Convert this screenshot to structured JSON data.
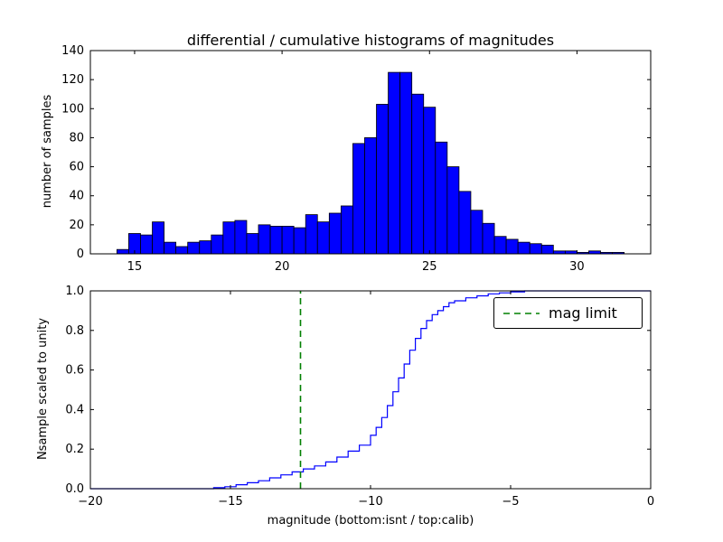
{
  "figure": {
    "background": "#ffffff",
    "axis_color": "#000000"
  },
  "chart_data": [
    {
      "type": "bar",
      "title": "differential / cumulative histograms of magnitudes",
      "ylabel": "number of samples",
      "xlabel": "",
      "bar_color": "#0000ff",
      "bar_edge_color": "#000000",
      "bin_start": 14.4,
      "bin_width": 0.4,
      "values": [
        3,
        14,
        13,
        22,
        8,
        5,
        8,
        9,
        13,
        22,
        23,
        14,
        20,
        19,
        19,
        18,
        27,
        22,
        28,
        33,
        76,
        80,
        103,
        125,
        125,
        110,
        101,
        77,
        60,
        43,
        30,
        21,
        12,
        10,
        8,
        7,
        6,
        2,
        2,
        1,
        2,
        1,
        1
      ],
      "xlim": [
        13.5,
        32.5
      ],
      "ylim": [
        0,
        140
      ],
      "xticks": [
        15,
        20,
        25,
        30
      ],
      "xticklabels": [
        "15",
        "20",
        "25",
        "30"
      ],
      "yticks": [
        0,
        20,
        40,
        60,
        80,
        100,
        120,
        140
      ],
      "yticklabels": [
        "0",
        "20",
        "40",
        "60",
        "80",
        "100",
        "120",
        "140"
      ],
      "grid": false
    },
    {
      "type": "line",
      "step": true,
      "title": "",
      "ylabel": "Nsample scaled to unity",
      "xlabel": "magnitude (bottom:isnt / top:calib)",
      "line_color": "#0000ff",
      "x": [
        -20,
        -15.6,
        -15.2,
        -14.8,
        -14.4,
        -14.0,
        -13.6,
        -13.2,
        -12.8,
        -12.4,
        -12.0,
        -11.6,
        -11.2,
        -10.8,
        -10.4,
        -10.0,
        -9.8,
        -9.6,
        -9.4,
        -9.2,
        -9.0,
        -8.8,
        -8.6,
        -8.4,
        -8.2,
        -8.0,
        -7.8,
        -7.6,
        -7.4,
        -7.2,
        -7.0,
        -6.6,
        -6.2,
        -5.8,
        -5.4,
        -5.0,
        -4.5,
        0
      ],
      "y": [
        0,
        0.005,
        0.01,
        0.02,
        0.03,
        0.04,
        0.055,
        0.07,
        0.085,
        0.1,
        0.115,
        0.135,
        0.16,
        0.19,
        0.22,
        0.27,
        0.31,
        0.36,
        0.42,
        0.49,
        0.56,
        0.63,
        0.7,
        0.76,
        0.81,
        0.85,
        0.88,
        0.9,
        0.92,
        0.94,
        0.95,
        0.965,
        0.975,
        0.985,
        0.99,
        0.995,
        1.0,
        1.0
      ],
      "xlim": [
        -20,
        0
      ],
      "ylim": [
        0,
        1
      ],
      "xticks": [
        -20,
        -15,
        -10,
        -5,
        0
      ],
      "xticklabels": [
        "−20",
        "−15",
        "−10",
        "−5",
        "0"
      ],
      "yticks": [
        0,
        0.2,
        0.4,
        0.6,
        0.8,
        1.0
      ],
      "yticklabels": [
        "0.0",
        "0.2",
        "0.4",
        "0.6",
        "0.8",
        "1.0"
      ],
      "vline": {
        "x": -12.5,
        "color": "#008000",
        "style": "dashed",
        "label": "mag limit"
      },
      "legend": {
        "position": "upper right",
        "entries": [
          {
            "label": "mag limit",
            "color": "#008000",
            "style": "dashed"
          }
        ]
      },
      "grid": false
    }
  ]
}
